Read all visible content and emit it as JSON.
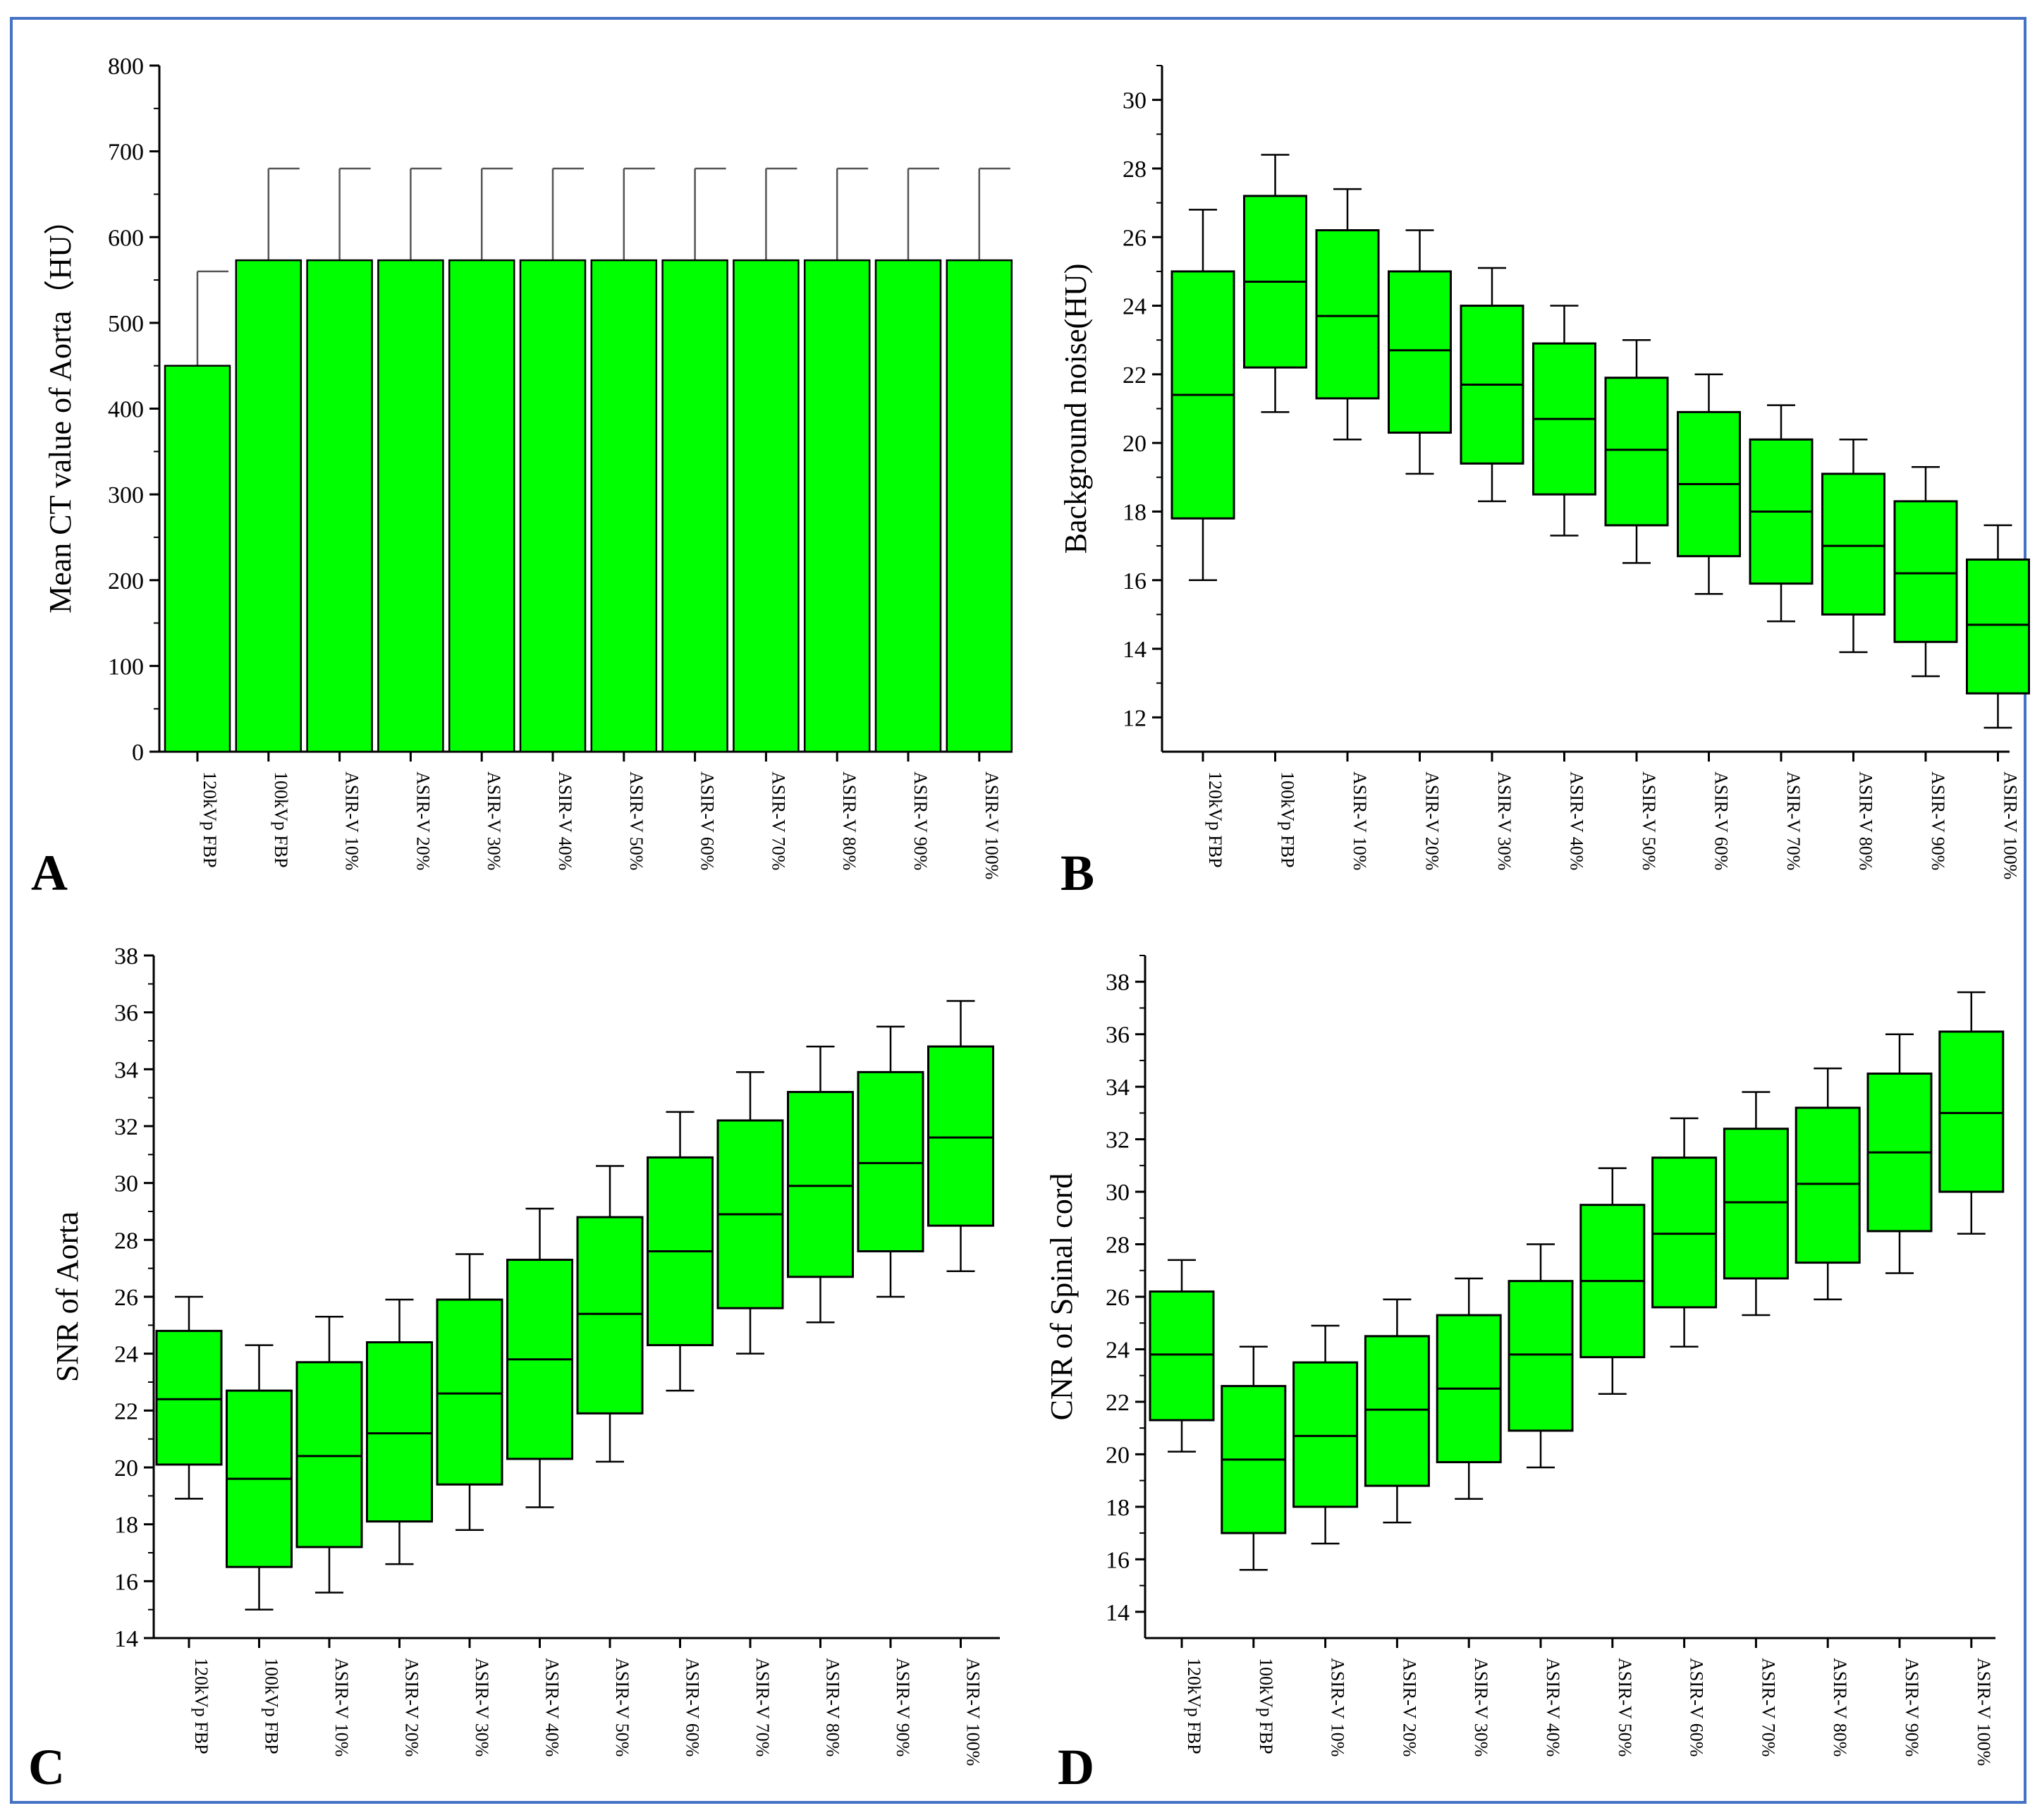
{
  "colors": {
    "fill": "#00ff00",
    "stroke": "#000000",
    "frame": "#4472c4",
    "whisker": "#555555"
  },
  "chart_data": [
    {
      "panel": "A",
      "type": "bar",
      "ylabel": "Mean CT value of Aorta（HU）",
      "ylim": [
        0,
        800
      ],
      "yticks": [
        0,
        100,
        200,
        300,
        400,
        500,
        600,
        700,
        800
      ],
      "categories": [
        "120kVp FBP",
        "100kVp FBP",
        "ASIR-V 10%",
        "ASIR-V 20%",
        "ASIR-V 30%",
        "ASIR-V 40%",
        "ASIR-V 50%",
        "ASIR-V 60%",
        "ASIR-V 70%",
        "ASIR-V 80%",
        "ASIR-V 90%",
        "ASIR-V 100%"
      ],
      "values": [
        450,
        573,
        573,
        573,
        573,
        573,
        573,
        573,
        573,
        573,
        573,
        573
      ],
      "error_upper": [
        560,
        680,
        680,
        680,
        680,
        680,
        680,
        680,
        680,
        680,
        680,
        680
      ]
    },
    {
      "panel": "B",
      "type": "box",
      "ylabel": "Background noise(HU)",
      "ylim": [
        11,
        31
      ],
      "yticks": [
        12,
        14,
        16,
        18,
        20,
        22,
        24,
        26,
        28,
        30
      ],
      "categories": [
        "120kVp FBP",
        "100kVp FBP",
        "ASIR-V 10%",
        "ASIR-V 20%",
        "ASIR-V 30%",
        "ASIR-V 40%",
        "ASIR-V 50%",
        "ASIR-V 60%",
        "ASIR-V 70%",
        "ASIR-V 80%",
        "ASIR-V 90%",
        "ASIR-V 100%"
      ],
      "boxes": [
        {
          "min": 16.0,
          "q1": 17.8,
          "median": 21.4,
          "q3": 25.0,
          "max": 26.8
        },
        {
          "min": 20.9,
          "q1": 22.2,
          "median": 24.7,
          "q3": 27.2,
          "max": 28.4
        },
        {
          "min": 20.1,
          "q1": 21.3,
          "median": 23.7,
          "q3": 26.2,
          "max": 27.4
        },
        {
          "min": 19.1,
          "q1": 20.3,
          "median": 22.7,
          "q3": 25.0,
          "max": 26.2
        },
        {
          "min": 18.3,
          "q1": 19.4,
          "median": 21.7,
          "q3": 24.0,
          "max": 25.1
        },
        {
          "min": 17.3,
          "q1": 18.5,
          "median": 20.7,
          "q3": 22.9,
          "max": 24.0
        },
        {
          "min": 16.5,
          "q1": 17.6,
          "median": 19.8,
          "q3": 21.9,
          "max": 23.0
        },
        {
          "min": 15.6,
          "q1": 16.7,
          "median": 18.8,
          "q3": 20.9,
          "max": 22.0
        },
        {
          "min": 14.8,
          "q1": 15.9,
          "median": 18.0,
          "q3": 20.1,
          "max": 21.1
        },
        {
          "min": 13.9,
          "q1": 15.0,
          "median": 17.0,
          "q3": 19.1,
          "max": 20.1
        },
        {
          "min": 13.2,
          "q1": 14.2,
          "median": 16.2,
          "q3": 18.3,
          "max": 19.3
        },
        {
          "min": 11.7,
          "q1": 12.7,
          "median": 14.7,
          "q3": 16.6,
          "max": 17.6
        }
      ]
    },
    {
      "panel": "C",
      "type": "box",
      "ylabel": "SNR of Aorta",
      "ylim": [
        14,
        38
      ],
      "yticks": [
        14,
        16,
        18,
        20,
        22,
        24,
        26,
        28,
        30,
        32,
        34,
        36,
        38
      ],
      "categories": [
        "120kVp FBP",
        "100kVp FBP",
        "ASIR-V 10%",
        "ASIR-V 20%",
        "ASIR-V 30%",
        "ASIR-V 40%",
        "ASIR-V 50%",
        "ASIR-V 60%",
        "ASIR-V 70%",
        "ASIR-V 80%",
        "ASIR-V 90%",
        "ASIR-V 100%"
      ],
      "boxes": [
        {
          "min": 18.9,
          "q1": 20.1,
          "median": 22.4,
          "q3": 24.8,
          "max": 26.0
        },
        {
          "min": 15.0,
          "q1": 16.5,
          "median": 19.6,
          "q3": 22.7,
          "max": 24.3
        },
        {
          "min": 15.6,
          "q1": 17.2,
          "median": 20.4,
          "q3": 23.7,
          "max": 25.3
        },
        {
          "min": 16.6,
          "q1": 18.1,
          "median": 21.2,
          "q3": 24.4,
          "max": 25.9
        },
        {
          "min": 17.8,
          "q1": 19.4,
          "median": 22.6,
          "q3": 25.9,
          "max": 27.5
        },
        {
          "min": 18.6,
          "q1": 20.3,
          "median": 23.8,
          "q3": 27.3,
          "max": 29.1
        },
        {
          "min": 20.2,
          "q1": 21.9,
          "median": 25.4,
          "q3": 28.8,
          "max": 30.6
        },
        {
          "min": 22.7,
          "q1": 24.3,
          "median": 27.6,
          "q3": 30.9,
          "max": 32.5
        },
        {
          "min": 24.0,
          "q1": 25.6,
          "median": 28.9,
          "q3": 32.2,
          "max": 33.9
        },
        {
          "min": 25.1,
          "q1": 26.7,
          "median": 29.9,
          "q3": 33.2,
          "max": 34.8
        },
        {
          "min": 26.0,
          "q1": 27.6,
          "median": 30.7,
          "q3": 33.9,
          "max": 35.5
        },
        {
          "min": 26.9,
          "q1": 28.5,
          "median": 31.6,
          "q3": 34.8,
          "max": 36.4
        }
      ]
    },
    {
      "panel": "D",
      "type": "box",
      "ylabel": "CNR of Spinal cord",
      "ylim": [
        13,
        39
      ],
      "yticks": [
        14,
        16,
        18,
        20,
        22,
        24,
        26,
        28,
        30,
        32,
        34,
        36,
        38
      ],
      "categories": [
        "120kVp FBP",
        "100kVp FBP",
        "ASIR-V 10%",
        "ASIR-V 20%",
        "ASIR-V 30%",
        "ASIR-V 40%",
        "ASIR-V 50%",
        "ASIR-V 60%",
        "ASIR-V 70%",
        "ASIR-V 80%",
        "ASIR-V 90%",
        "ASIR-V 100%"
      ],
      "boxes": [
        {
          "min": 20.1,
          "q1": 21.3,
          "median": 23.8,
          "q3": 26.2,
          "max": 27.4
        },
        {
          "min": 15.6,
          "q1": 17.0,
          "median": 19.8,
          "q3": 22.6,
          "max": 24.1
        },
        {
          "min": 16.6,
          "q1": 18.0,
          "median": 20.7,
          "q3": 23.5,
          "max": 24.9
        },
        {
          "min": 17.4,
          "q1": 18.8,
          "median": 21.7,
          "q3": 24.5,
          "max": 25.9
        },
        {
          "min": 18.3,
          "q1": 19.7,
          "median": 22.5,
          "q3": 25.3,
          "max": 26.7
        },
        {
          "min": 19.5,
          "q1": 20.9,
          "median": 23.8,
          "q3": 26.6,
          "max": 28.0
        },
        {
          "min": 22.3,
          "q1": 23.7,
          "median": 26.6,
          "q3": 29.5,
          "max": 30.9
        },
        {
          "min": 24.1,
          "q1": 25.6,
          "median": 28.4,
          "q3": 31.3,
          "max": 32.8
        },
        {
          "min": 25.3,
          "q1": 26.7,
          "median": 29.6,
          "q3": 32.4,
          "max": 33.8
        },
        {
          "min": 25.9,
          "q1": 27.3,
          "median": 30.3,
          "q3": 33.2,
          "max": 34.7
        },
        {
          "min": 26.9,
          "q1": 28.5,
          "median": 31.5,
          "q3": 34.5,
          "max": 36.0
        },
        {
          "min": 28.4,
          "q1": 30.0,
          "median": 33.0,
          "q3": 36.1,
          "max": 37.6
        }
      ]
    }
  ]
}
